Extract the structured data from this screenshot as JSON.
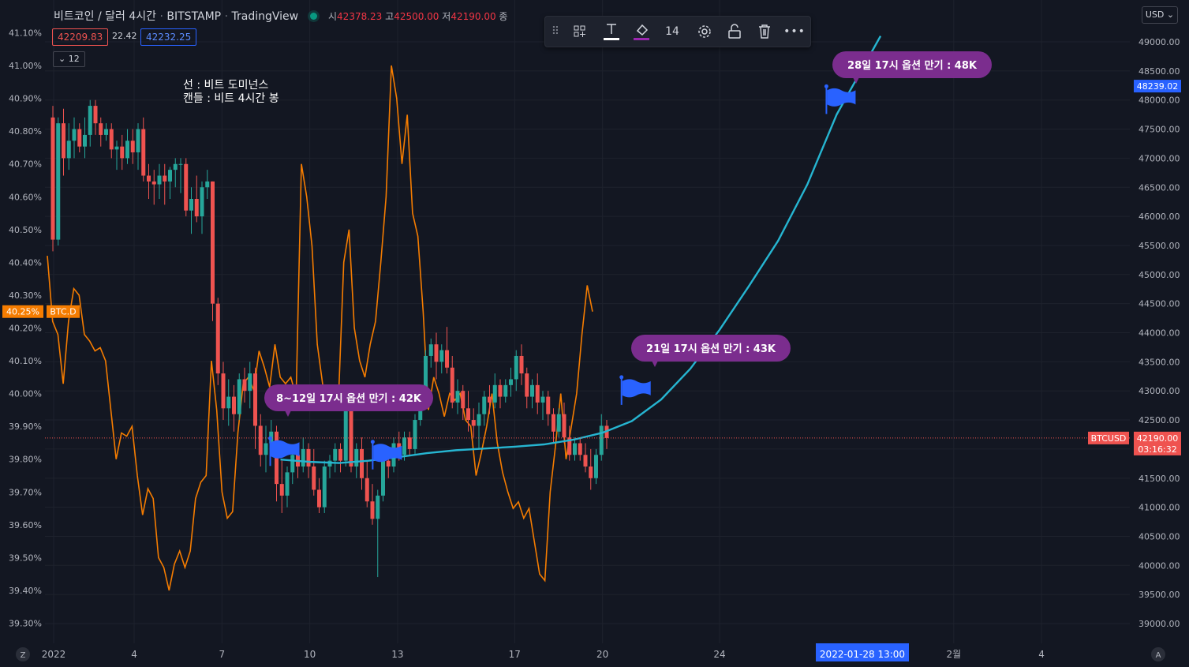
{
  "header": {
    "symbol": "비트코인 / 달러",
    "interval": "4시간",
    "exchange": "BITSTAMP",
    "provider": "TradingView",
    "open_label": "시",
    "open": "42378.23",
    "high_label": "고",
    "high": "42500.00",
    "low_label": "저",
    "low": "42190.00",
    "close_label": "종"
  },
  "price_boxes": {
    "bid": "42209.83",
    "spread": "22.42",
    "ask": "42232.25",
    "indicator_count": "12"
  },
  "toolbar": {
    "font_size": "14"
  },
  "currency": "USD",
  "note_line1": "선 : 비트 도미넌스",
  "note_line2": "캔들 : 비트 4시간 봉",
  "callouts": [
    "8~12일 17시  옵션 만기 : 42K",
    "21일 17시  옵션 만기 : 43K",
    "28일 17시  옵션 만기 : 48K"
  ],
  "date_tag": "2022-01-28   13:00",
  "corner_left": "Z",
  "corner_right": "A",
  "colors": {
    "up": "#26a69a",
    "down": "#ef5350",
    "dominance": "#f57c00",
    "projection": "#26b5d1",
    "callout": "#7b2d8e",
    "flag": "#2962ff"
  },
  "chart_data": {
    "type": "candlestick",
    "title": "",
    "left_axis": {
      "label": "BTC.D",
      "unit": "%",
      "range": [
        39.25,
        41.15
      ],
      "ticks": [
        "41.10%",
        "41.00%",
        "40.90%",
        "40.80%",
        "40.70%",
        "40.60%",
        "40.50%",
        "40.40%",
        "40.30%",
        "40.20%",
        "40.10%",
        "40.00%",
        "39.90%",
        "39.80%",
        "39.70%",
        "39.60%",
        "39.50%",
        "39.40%",
        "39.30%"
      ],
      "current": "40.25%"
    },
    "right_axis": {
      "label": "BTCUSD",
      "unit": "USD",
      "range": [
        38700,
        49500
      ],
      "ticks": [
        "49000.00",
        "48500.00",
        "48000.00",
        "47500.00",
        "47000.00",
        "46500.00",
        "46000.00",
        "45500.00",
        "45000.00",
        "44500.00",
        "44000.00",
        "43500.00",
        "43000.00",
        "42500.00",
        "42000.00",
        "41500.00",
        "41000.00",
        "40500.00",
        "40000.00",
        "39500.00",
        "39000.00"
      ],
      "current": "42190.00",
      "countdown": "03:16:32",
      "marked": "48239.02"
    },
    "x_axis": {
      "ticks": [
        "2022",
        "4",
        "7",
        "10",
        "13",
        "17",
        "20",
        "24",
        "2월",
        "4"
      ]
    },
    "candles": [
      [
        47700,
        47900,
        45400,
        45600
      ],
      [
        45600,
        47700,
        45500,
        47600
      ],
      [
        47600,
        47850,
        46700,
        47000
      ],
      [
        47000,
        47600,
        46800,
        47300
      ],
      [
        47300,
        47700,
        47000,
        47500
      ],
      [
        47500,
        47600,
        47100,
        47200
      ],
      [
        47200,
        47700,
        47000,
        47400
      ],
      [
        47400,
        48000,
        47200,
        47900
      ],
      [
        47900,
        48000,
        47400,
        47600
      ],
      [
        47600,
        47700,
        47200,
        47400
      ],
      [
        47400,
        47600,
        47300,
        47500
      ],
      [
        47500,
        47600,
        47000,
        47150
      ],
      [
        47150,
        47300,
        46800,
        47200
      ],
      [
        47200,
        47400,
        46800,
        47000
      ],
      [
        47000,
        47500,
        46900,
        47300
      ],
      [
        47300,
        47500,
        46900,
        47100
      ],
      [
        47100,
        47600,
        46800,
        47500
      ],
      [
        47500,
        47700,
        46600,
        46700
      ],
      [
        46700,
        46900,
        46300,
        46600
      ],
      [
        46600,
        46800,
        46200,
        46550
      ],
      [
        46550,
        46900,
        46300,
        46700
      ],
      [
        46700,
        46900,
        46200,
        46600
      ],
      [
        46600,
        46850,
        46300,
        46800
      ],
      [
        46800,
        47000,
        46500,
        46900
      ],
      [
        46900,
        47000,
        46400,
        46900
      ],
      [
        46900,
        47000,
        46000,
        46100
      ],
      [
        46100,
        46500,
        45700,
        46300
      ],
      [
        46300,
        46700,
        45900,
        46000
      ],
      [
        46000,
        46600,
        45700,
        46500
      ],
      [
        46500,
        46800,
        46300,
        46600
      ],
      [
        46600,
        46600,
        44200,
        44500
      ],
      [
        44500,
        44600,
        43100,
        43300
      ],
      [
        43300,
        43500,
        42500,
        42700
      ],
      [
        42700,
        43200,
        42400,
        42900
      ],
      [
        42900,
        43100,
        42300,
        42600
      ],
      [
        42600,
        43300,
        42500,
        43200
      ],
      [
        43200,
        43400,
        42800,
        43000
      ],
      [
        43000,
        43500,
        42700,
        43300
      ],
      [
        43300,
        43400,
        42000,
        42400
      ],
      [
        42400,
        42600,
        41700,
        41900
      ],
      [
        41900,
        42400,
        41600,
        42100
      ],
      [
        42100,
        42500,
        41900,
        42300
      ],
      [
        42300,
        42400,
        41100,
        41400
      ],
      [
        41400,
        41800,
        40900,
        41200
      ],
      [
        41200,
        41700,
        41000,
        41600
      ],
      [
        41600,
        42000,
        41400,
        41900
      ],
      [
        41900,
        42100,
        41500,
        41700
      ],
      [
        41700,
        42200,
        41600,
        42000
      ],
      [
        42000,
        42100,
        41500,
        41700
      ],
      [
        41700,
        42000,
        41200,
        41300
      ],
      [
        41300,
        41500,
        40900,
        41000
      ],
      [
        41000,
        41800,
        40900,
        41700
      ],
      [
        41700,
        41900,
        41500,
        41800
      ],
      [
        41800,
        42100,
        41600,
        42000
      ],
      [
        42000,
        42100,
        41600,
        41800
      ],
      [
        41800,
        42900,
        41700,
        42800
      ],
      [
        42800,
        42900,
        41600,
        41700
      ],
      [
        41700,
        42100,
        41500,
        42000
      ],
      [
        42000,
        42200,
        41300,
        41500
      ],
      [
        41500,
        41800,
        41000,
        41100
      ],
      [
        41100,
        41400,
        40700,
        40800
      ],
      [
        40800,
        41300,
        39800,
        41200
      ],
      [
        41200,
        41900,
        41100,
        41800
      ],
      [
        41800,
        42000,
        41500,
        41700
      ],
      [
        41700,
        42200,
        41600,
        42100
      ],
      [
        42100,
        42300,
        41800,
        41900
      ],
      [
        41900,
        42300,
        41800,
        42200
      ],
      [
        42200,
        42300,
        41900,
        42000
      ],
      [
        42000,
        42600,
        41900,
        42500
      ],
      [
        42500,
        43100,
        42400,
        43000
      ],
      [
        43000,
        43700,
        42800,
        43600
      ],
      [
        43600,
        43900,
        43400,
        43800
      ],
      [
        43800,
        44000,
        43200,
        43500
      ],
      [
        43500,
        43800,
        43300,
        43700
      ],
      [
        43700,
        44100,
        43300,
        43400
      ],
      [
        43400,
        43600,
        42700,
        42800
      ],
      [
        42800,
        43200,
        42600,
        43000
      ],
      [
        43000,
        43100,
        42500,
        42700
      ],
      [
        42700,
        43000,
        42300,
        42500
      ],
      [
        42500,
        42700,
        42200,
        42400
      ],
      [
        42400,
        42800,
        42000,
        42600
      ],
      [
        42600,
        43000,
        42400,
        42900
      ],
      [
        42900,
        43100,
        42600,
        42800
      ],
      [
        42800,
        43300,
        42700,
        43100
      ],
      [
        43100,
        43200,
        42700,
        42900
      ],
      [
        42900,
        43200,
        42800,
        43100
      ],
      [
        43100,
        43400,
        42900,
        43200
      ],
      [
        43200,
        43700,
        43000,
        43600
      ],
      [
        43600,
        43800,
        43100,
        43300
      ],
      [
        43300,
        43400,
        42700,
        42900
      ],
      [
        42900,
        43200,
        42700,
        43100
      ],
      [
        43100,
        43300,
        42600,
        42800
      ],
      [
        42800,
        43000,
        42500,
        42900
      ],
      [
        42900,
        43000,
        42400,
        42600
      ],
      [
        42600,
        42700,
        42100,
        42300
      ],
      [
        42300,
        42700,
        42200,
        42600
      ],
      [
        42600,
        42800,
        42100,
        42200
      ],
      [
        42200,
        42400,
        41800,
        41900
      ],
      [
        41900,
        42200,
        41800,
        42100
      ],
      [
        42100,
        42200,
        41800,
        41900
      ],
      [
        41900,
        42100,
        41600,
        41700
      ],
      [
        41700,
        42000,
        41300,
        41500
      ],
      [
        41500,
        42000,
        41400,
        41900
      ],
      [
        41900,
        42600,
        41800,
        42400
      ],
      [
        42400,
        42500,
        42000,
        42190
      ]
    ],
    "dominance": [
      40.42,
      40.22,
      40.18,
      40.03,
      40.22,
      40.32,
      40.3,
      40.18,
      40.16,
      40.13,
      40.14,
      40.1,
      39.95,
      39.8,
      39.88,
      39.87,
      39.9,
      39.75,
      39.63,
      39.71,
      39.68,
      39.5,
      39.47,
      39.4,
      39.48,
      39.52,
      39.47,
      39.52,
      39.68,
      39.73,
      39.75,
      40.1,
      39.95,
      39.7,
      39.62,
      39.64,
      39.88,
      40.03,
      40.05,
      40.01,
      40.13,
      40.08,
      40.02,
      40.15,
      40.05,
      40.03,
      40.05,
      39.99,
      40.7,
      40.6,
      40.45,
      40.15,
      40.03,
      39.96,
      39.95,
      39.98,
      40.4,
      40.5,
      40.2,
      40.1,
      40.05,
      40.15,
      40.22,
      40.4,
      40.6,
      41.0,
      40.9,
      40.7,
      40.85,
      40.55,
      40.48,
      40.25,
      39.95,
      40.05,
      40.0,
      39.93,
      40.0,
      39.98,
      40.0,
      39.92,
      39.9,
      39.75,
      39.82,
      39.9,
      40.0,
      39.85,
      39.76,
      39.7,
      39.65,
      39.67,
      39.62,
      39.65,
      39.55,
      39.45,
      39.43,
      39.7,
      39.84,
      40.0,
      39.8,
      39.9,
      40.0,
      40.18,
      40.33,
      40.25
    ],
    "projection": [
      [
        9.0,
        41820
      ],
      [
        10.0,
        41780
      ],
      [
        11.0,
        41760
      ],
      [
        12.0,
        41800
      ],
      [
        13.0,
        41860
      ],
      [
        14.0,
        41930
      ],
      [
        15.0,
        41980
      ],
      [
        16.0,
        42010
      ],
      [
        17.0,
        42040
      ],
      [
        18.0,
        42080
      ],
      [
        19.0,
        42160
      ],
      [
        20.0,
        42280
      ],
      [
        21.0,
        42480
      ],
      [
        22.0,
        42850
      ],
      [
        23.0,
        43380
      ],
      [
        24.0,
        44050
      ],
      [
        25.0,
        44800
      ],
      [
        26.0,
        45580
      ],
      [
        27.0,
        46550
      ],
      [
        28.0,
        47750
      ],
      [
        29.5,
        49100
      ]
    ],
    "flags": [
      [
        9.0,
        41900
      ],
      [
        12.5,
        41840
      ],
      [
        21.0,
        42950
      ],
      [
        28.0,
        47950
      ]
    ]
  }
}
